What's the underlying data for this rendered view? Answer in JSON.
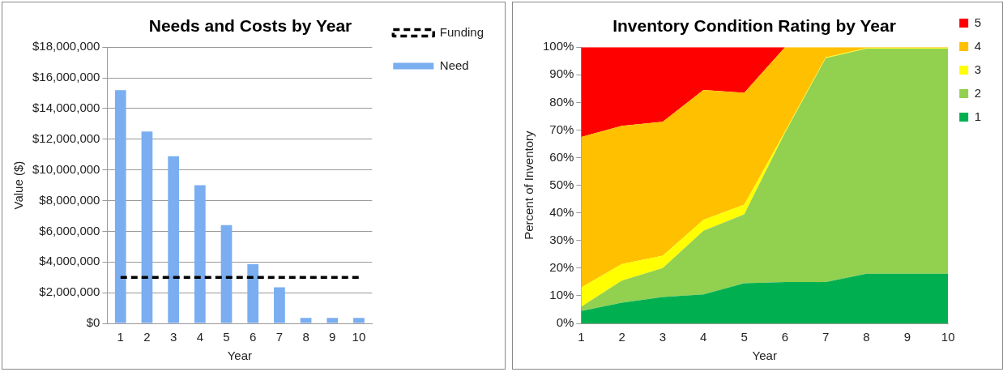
{
  "chart_data": [
    {
      "type": "bar",
      "title": "Needs and Costs by Year",
      "xlabel": "Year",
      "ylabel": "Value ($)",
      "categories": [
        "1",
        "2",
        "3",
        "4",
        "5",
        "6",
        "7",
        "8",
        "9",
        "10"
      ],
      "series": [
        {
          "name": "Need",
          "color": "#7aaef0",
          "values": [
            15200000,
            12500000,
            10900000,
            9000000,
            6400000,
            3850000,
            2350000,
            350000,
            350000,
            350000
          ]
        },
        {
          "name": "Funding",
          "type": "line",
          "color": "#000000",
          "line_style": "dashed",
          "marker": "none",
          "values": [
            3000000,
            3000000,
            3000000,
            3000000,
            3000000,
            3000000,
            3000000,
            3000000,
            3000000,
            3000000
          ]
        }
      ],
      "ylim": [
        0,
        18000000
      ],
      "yticks": [
        {
          "value": 0,
          "label": "$0"
        },
        {
          "value": 2000000,
          "label": "$2,000,000"
        },
        {
          "value": 4000000,
          "label": "$4,000,000"
        },
        {
          "value": 6000000,
          "label": "$6,000,000"
        },
        {
          "value": 8000000,
          "label": "$8,000,000"
        },
        {
          "value": 10000000,
          "label": "$10,000,000"
        },
        {
          "value": 12000000,
          "label": "$12,000,000"
        },
        {
          "value": 14000000,
          "label": "$14,000,000"
        },
        {
          "value": 16000000,
          "label": "$16,000,000"
        },
        {
          "value": 18000000,
          "label": "$18,000,000"
        }
      ],
      "grid": "y",
      "legend": "top right"
    },
    {
      "type": "area",
      "title": "Inventory Condition Rating by Year",
      "xlabel": "Year",
      "ylabel": "Percent of Inventory",
      "categories": [
        "1",
        "2",
        "3",
        "4",
        "5",
        "6",
        "7",
        "8",
        "9",
        "10"
      ],
      "stacked": true,
      "series": [
        {
          "name": "1",
          "color": "#00b050",
          "values": [
            4.5,
            7.5,
            9.5,
            10.5,
            14.5,
            15,
            15,
            18,
            18,
            18
          ]
        },
        {
          "name": "2",
          "color": "#92d050",
          "values": [
            1.5,
            8,
            10.5,
            23,
            25,
            54,
            81,
            81.5,
            81.5,
            81.5
          ]
        },
        {
          "name": "3",
          "color": "#ffff00",
          "values": [
            7,
            6,
            4.5,
            4,
            3.5,
            0.5,
            0.3,
            0.2,
            0.2,
            0.2
          ]
        },
        {
          "name": "4",
          "color": "#ffc000",
          "values": [
            54.5,
            50,
            48.5,
            47,
            40.5,
            30.5,
            3.7,
            0.3,
            0.3,
            0.3
          ]
        },
        {
          "name": "5",
          "color": "#ff0000",
          "values": [
            32.5,
            28.5,
            27,
            15.5,
            16.5,
            0,
            0,
            0,
            0,
            0
          ]
        }
      ],
      "ylim": [
        0,
        100
      ],
      "yticks": [
        {
          "value": 0,
          "label": "0%"
        },
        {
          "value": 10,
          "label": "10%"
        },
        {
          "value": 20,
          "label": "20%"
        },
        {
          "value": 30,
          "label": "30%"
        },
        {
          "value": 40,
          "label": "40%"
        },
        {
          "value": 50,
          "label": "50%"
        },
        {
          "value": 60,
          "label": "60%"
        },
        {
          "value": 70,
          "label": "70%"
        },
        {
          "value": 80,
          "label": "80%"
        },
        {
          "value": 90,
          "label": "90%"
        },
        {
          "value": 100,
          "label": "100%"
        }
      ],
      "grid": false,
      "legend": "top right"
    }
  ]
}
